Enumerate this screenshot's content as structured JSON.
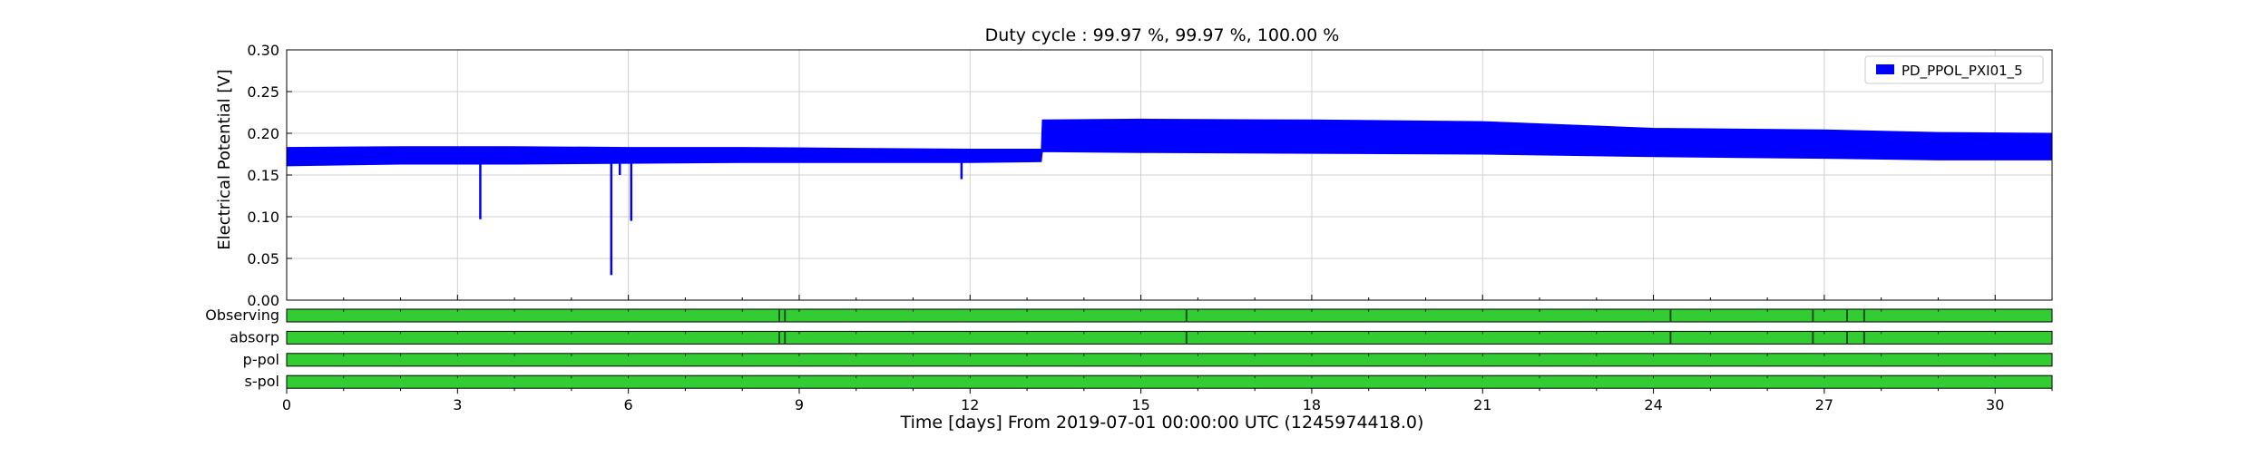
{
  "chart_data": {
    "type": "area",
    "title": "Duty cycle : 99.97 %, 99.97 %, 100.00 %",
    "xlabel": "Time [days] From 2019-07-01 00:00:00 UTC (1245974418.0)",
    "ylabel": "Electrical Potential [V]",
    "xlim": [
      0,
      31
    ],
    "ylim": [
      0,
      0.3
    ],
    "x_ticks": [
      0,
      3,
      6,
      9,
      12,
      15,
      18,
      21,
      24,
      27,
      30
    ],
    "y_ticks": [
      "0.00",
      "0.05",
      "0.10",
      "0.15",
      "0.20",
      "0.25",
      "0.30"
    ],
    "grid": true,
    "legend_position": "top-right",
    "series": [
      {
        "name": "PD_PPOL_PXI01_5",
        "color": "#0000ff",
        "envelope": [
          {
            "x": 0,
            "low": 0.161,
            "high": 0.183
          },
          {
            "x": 2,
            "low": 0.163,
            "high": 0.184
          },
          {
            "x": 4,
            "low": 0.163,
            "high": 0.184
          },
          {
            "x": 6,
            "low": 0.164,
            "high": 0.183
          },
          {
            "x": 8,
            "low": 0.165,
            "high": 0.183
          },
          {
            "x": 10,
            "low": 0.165,
            "high": 0.182
          },
          {
            "x": 12,
            "low": 0.165,
            "high": 0.181
          },
          {
            "x": 13.25,
            "low": 0.166,
            "high": 0.181
          },
          {
            "x": 13.27,
            "low": 0.178,
            "high": 0.216
          },
          {
            "x": 15,
            "low": 0.177,
            "high": 0.217
          },
          {
            "x": 18,
            "low": 0.176,
            "high": 0.216
          },
          {
            "x": 21,
            "low": 0.175,
            "high": 0.214
          },
          {
            "x": 24,
            "low": 0.172,
            "high": 0.206
          },
          {
            "x": 27,
            "low": 0.17,
            "high": 0.204
          },
          {
            "x": 29,
            "low": 0.168,
            "high": 0.201
          },
          {
            "x": 31,
            "low": 0.168,
            "high": 0.2
          }
        ],
        "dips": [
          {
            "x": 3.4,
            "y": 0.097
          },
          {
            "x": 5.7,
            "y": 0.03
          },
          {
            "x": 5.85,
            "y": 0.15
          },
          {
            "x": 6.05,
            "y": 0.095
          },
          {
            "x": 11.85,
            "y": 0.145
          }
        ]
      }
    ],
    "segment_panels": [
      {
        "label": "Observing",
        "color": "#33cc33",
        "gaps": [
          8.65,
          8.75,
          15.8,
          24.3,
          26.8,
          27.4,
          27.7
        ]
      },
      {
        "label": "absorp",
        "color": "#33cc33",
        "gaps": [
          8.65,
          8.75,
          15.8,
          24.3,
          26.8,
          27.4,
          27.7
        ]
      },
      {
        "label": "p-pol",
        "color": "#33cc33",
        "gaps": []
      },
      {
        "label": "s-pol",
        "color": "#33cc33",
        "gaps": []
      }
    ]
  }
}
